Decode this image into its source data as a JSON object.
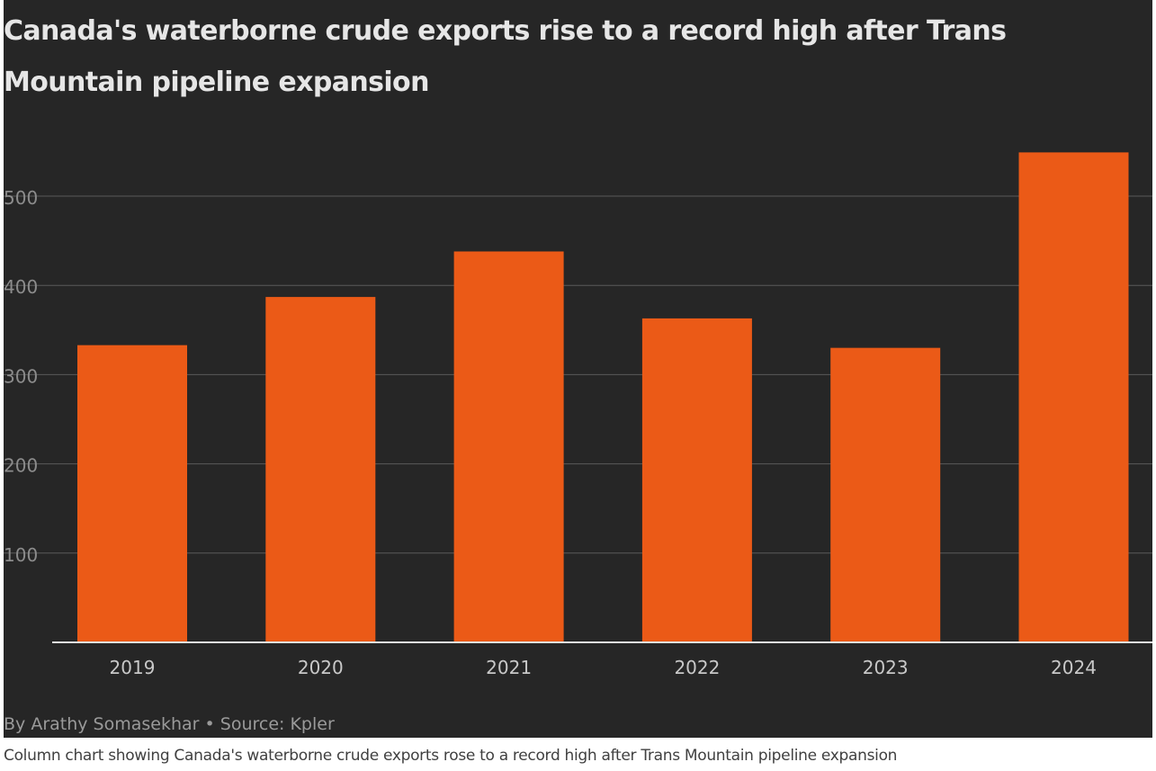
{
  "colors": {
    "background": "#262626",
    "bar": "#eb5a17",
    "gridline": "#5a5a5a",
    "axis_line": "#e0e0e0",
    "tick_text": "#8c8c8c",
    "category_text": "#c8c8c8"
  },
  "chart_data": {
    "type": "bar",
    "title": "Canada's waterborne crude exports rise to a record high after Trans Mountain pipeline expansion",
    "xlabel": "",
    "ylabel": "",
    "categories": [
      "2019",
      "2020",
      "2021",
      "2022",
      "2023",
      "2024"
    ],
    "values": [
      333,
      387,
      438,
      363,
      330,
      549
    ],
    "ylim": [
      0,
      600
    ],
    "yticks": [
      100,
      200,
      300,
      400,
      500
    ],
    "ytick_labels": [
      "100",
      "200",
      "300",
      "400",
      "500"
    ],
    "grid": true,
    "legend": "none"
  },
  "byline": "By Arathy Somasekhar • Source: Kpler",
  "caption": "Column chart showing Canada's waterborne crude exports rose to a record high after Trans Mountain pipeline expansion"
}
